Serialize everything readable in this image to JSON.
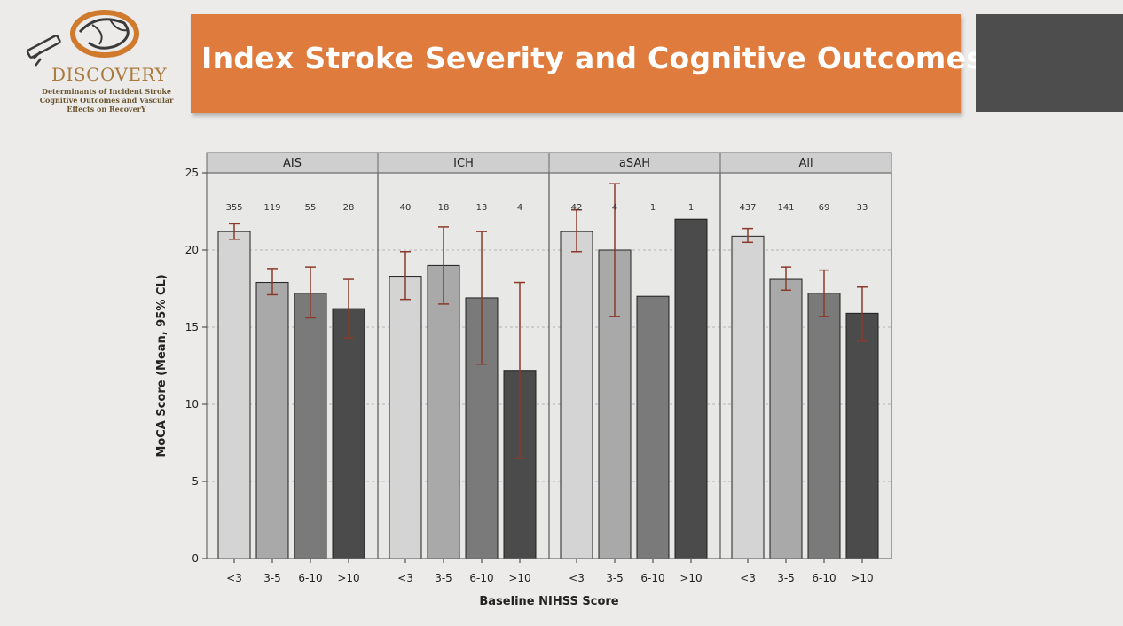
{
  "slide": {
    "title": "Index Stroke Severity and Cognitive Outcomes"
  },
  "logo": {
    "wordmark": "DISCOVERY",
    "subtitle_lines": [
      "Determinants of Incident Stroke",
      "Cognitive Outcomes and Vascular",
      "Effects on RecoverY"
    ]
  },
  "colors": {
    "accent": "#e07b3e",
    "dark_block": "#4d4d4d",
    "panel_header": "#cfcfcf",
    "error_bar": "#8b3a2a",
    "bar_fills": [
      "#d4d4d4",
      "#a9a9a9",
      "#7a7a7a",
      "#4b4b4b"
    ]
  },
  "chart_data": {
    "type": "bar",
    "ylabel": "MoCA Score (Mean, 95% CL)",
    "xlabel": "Baseline NIHSS Score",
    "ylim": [
      0,
      25
    ],
    "yticks": [
      0,
      5,
      10,
      15,
      20,
      25
    ],
    "categories": [
      "<3",
      "3-5",
      "6-10",
      ">10"
    ],
    "grid": "horizontal dashed",
    "panels": [
      {
        "name": "AIS",
        "means": [
          21.2,
          17.9,
          17.2,
          16.2
        ],
        "ci_low": [
          20.7,
          17.1,
          15.6,
          14.3
        ],
        "ci_high": [
          21.7,
          18.8,
          18.9,
          18.1
        ],
        "n": [
          "355",
          "119",
          "55",
          "28"
        ]
      },
      {
        "name": "ICH",
        "means": [
          18.3,
          19.0,
          16.9,
          12.2
        ],
        "ci_low": [
          16.8,
          16.5,
          12.6,
          6.5
        ],
        "ci_high": [
          19.9,
          21.5,
          21.2,
          17.9
        ],
        "n": [
          "40",
          "18",
          "13",
          "4"
        ]
      },
      {
        "name": "aSAH",
        "means": [
          21.2,
          20.0,
          17.0,
          22.0
        ],
        "ci_low": [
          19.9,
          15.7,
          null,
          null
        ],
        "ci_high": [
          22.6,
          24.3,
          null,
          null
        ],
        "n": [
          "42",
          "4",
          "1",
          "1"
        ]
      },
      {
        "name": "All",
        "means": [
          20.9,
          18.1,
          17.2,
          15.9
        ],
        "ci_low": [
          20.5,
          17.4,
          15.7,
          14.1
        ],
        "ci_high": [
          21.4,
          18.9,
          18.7,
          17.6
        ],
        "n": [
          "437",
          "141",
          "69",
          "33"
        ]
      }
    ]
  }
}
